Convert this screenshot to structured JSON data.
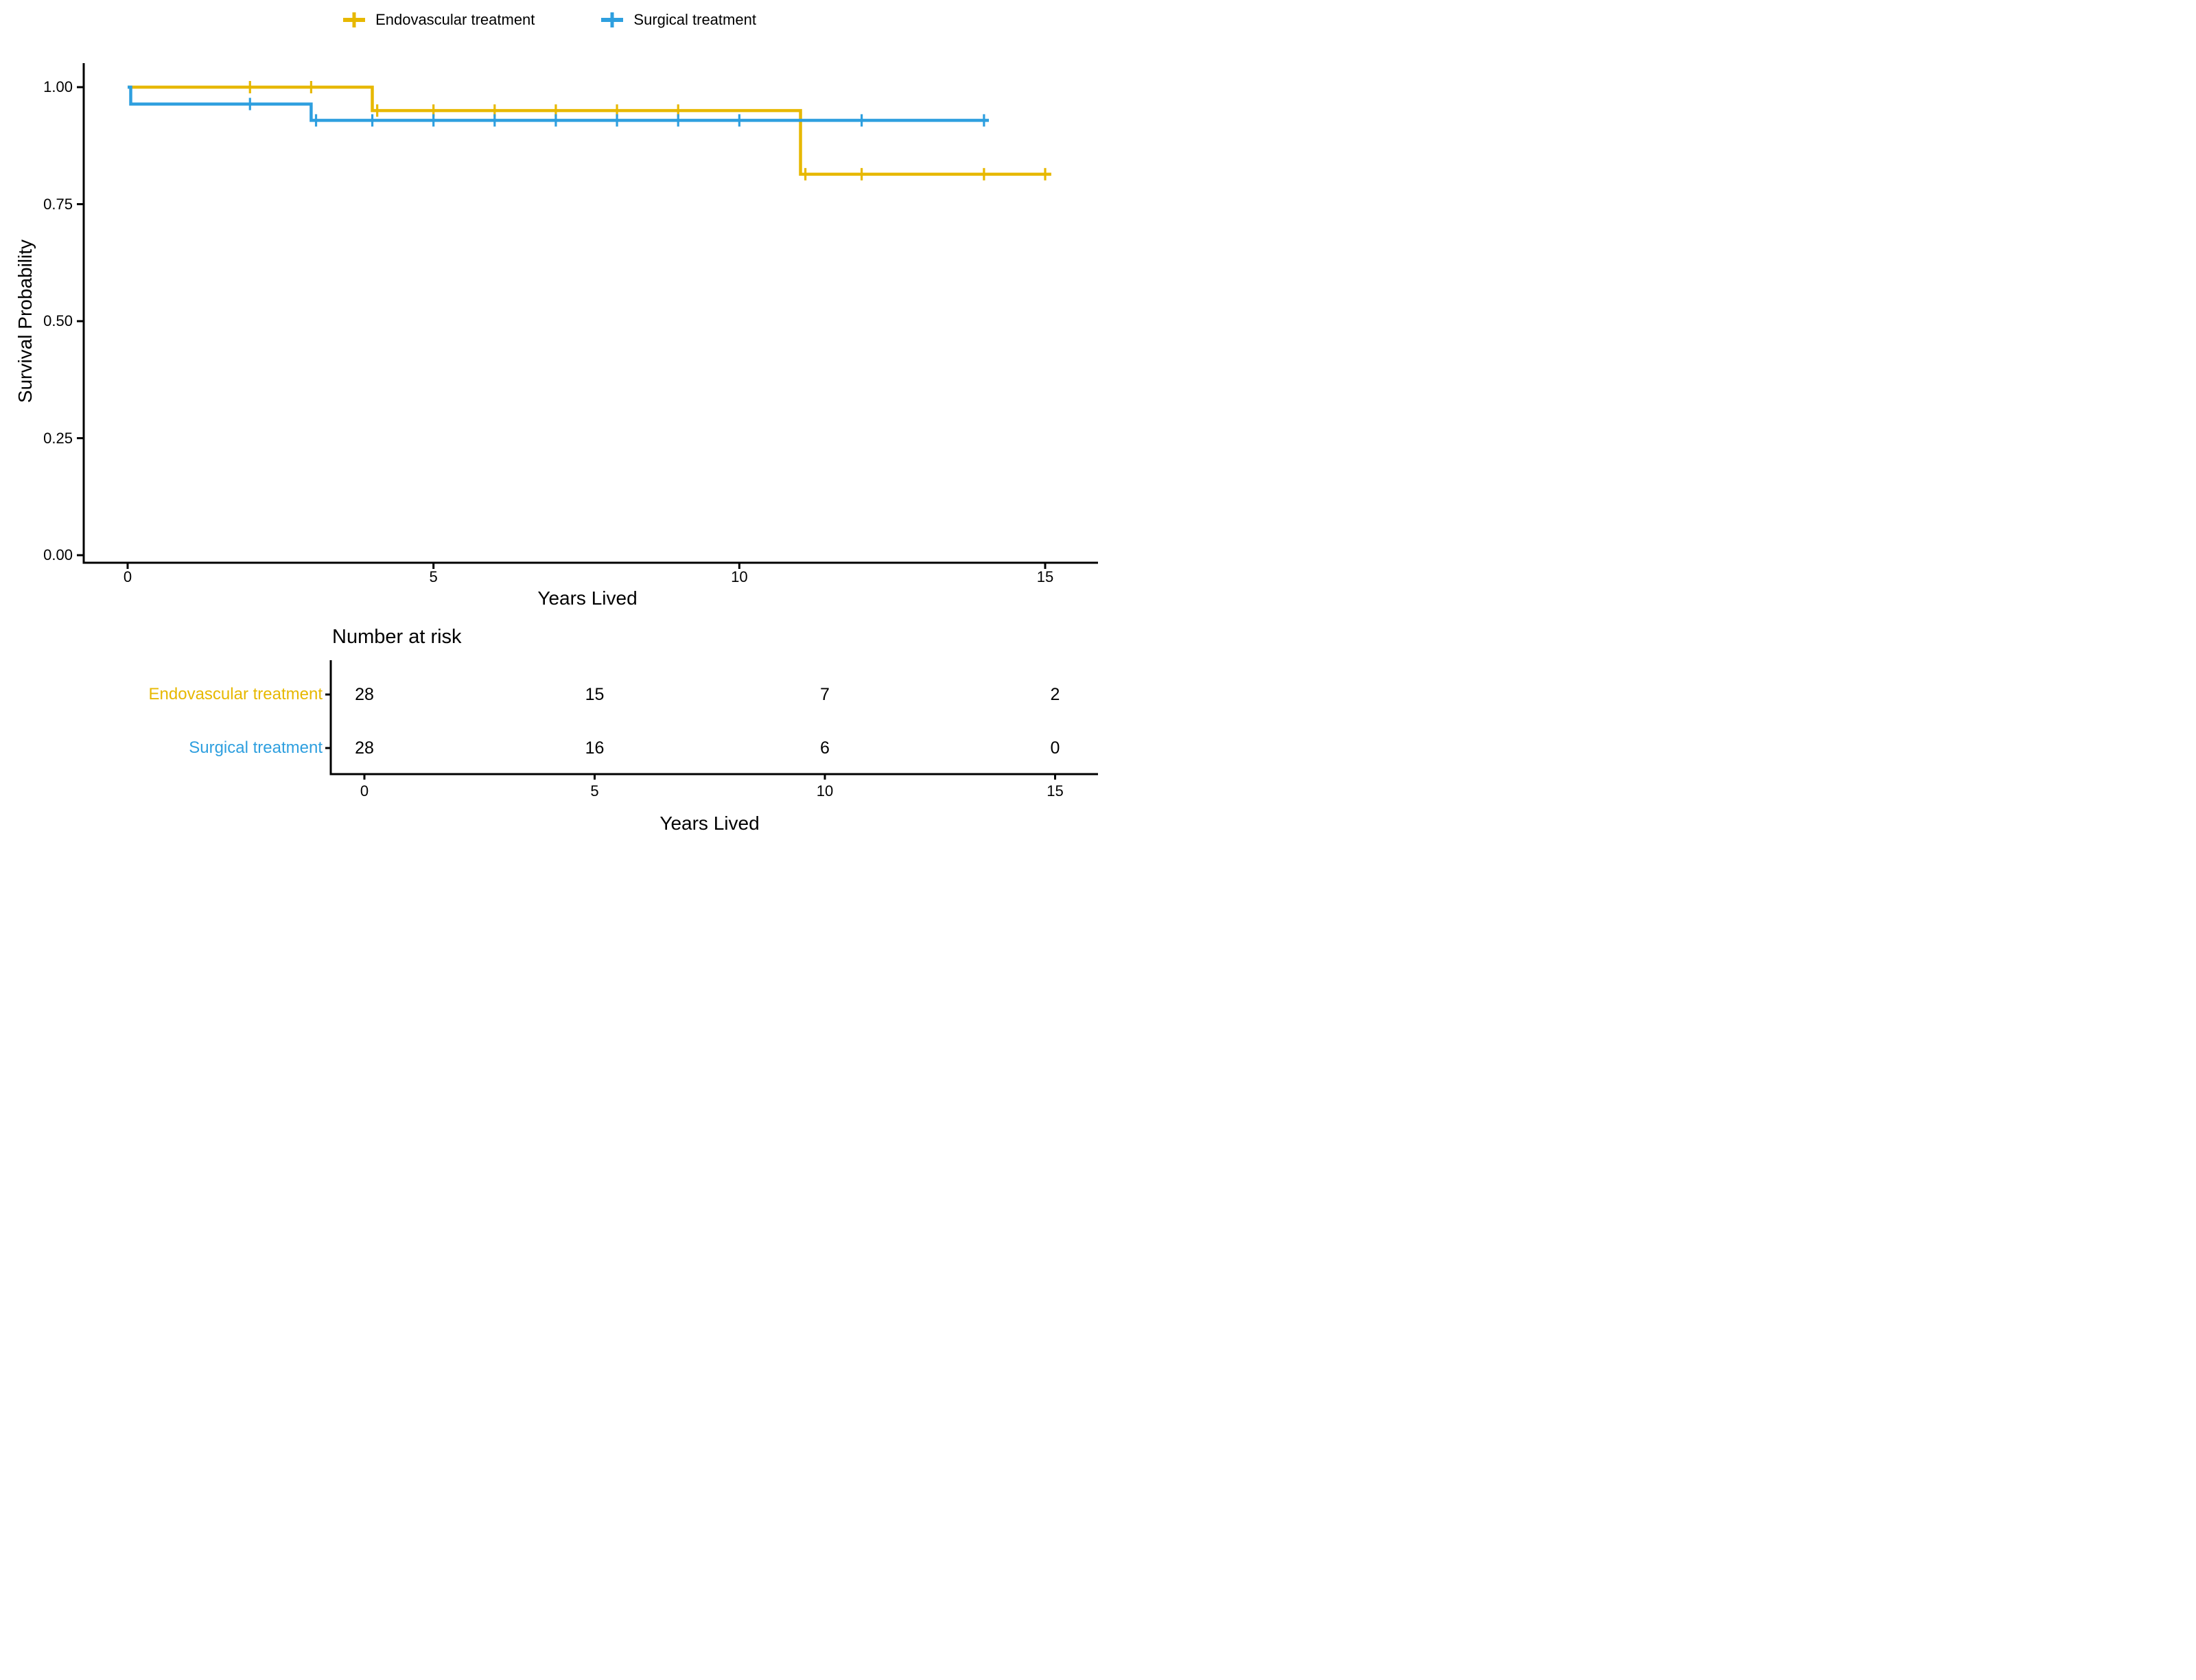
{
  "figure": {
    "background": "#ffffff",
    "text_color": "#000000"
  },
  "legend": {
    "items": [
      {
        "label": "Endovascular treatment",
        "color": "#E7B800",
        "marker": "plus"
      },
      {
        "label": "Surgical treatment",
        "color": "#2E9FDF",
        "marker": "plus"
      }
    ]
  },
  "chart_data": {
    "type": "line",
    "subtype": "kaplan-meier-step",
    "title": "",
    "xlabel": "Years Lived",
    "ylabel": "Survival Probability",
    "xlim": [
      0,
      15.3
    ],
    "ylim": [
      0,
      1.05
    ],
    "grid": false,
    "legend_position": "top-center",
    "xticks": [
      [
        0,
        "0"
      ],
      [
        5,
        "5"
      ],
      [
        10,
        "10"
      ],
      [
        15,
        "15"
      ]
    ],
    "yticks": [
      [
        1.0,
        "1.00"
      ],
      [
        0.75,
        "0.75"
      ],
      [
        0.5,
        "0.50"
      ],
      [
        0.25,
        "0.25"
      ],
      [
        0.0,
        "0.00"
      ]
    ],
    "series": [
      {
        "name": "Endovascular treatment",
        "color": "#E7B800",
        "steps": [
          [
            0,
            1.0
          ],
          [
            4,
            1.0
          ],
          [
            4,
            0.95
          ],
          [
            11,
            0.95
          ],
          [
            11,
            0.814
          ],
          [
            15.1,
            0.814
          ]
        ],
        "censors": [
          [
            2,
            1.0
          ],
          [
            3,
            1.0
          ],
          [
            4.08,
            0.95
          ],
          [
            5,
            0.95
          ],
          [
            6,
            0.95
          ],
          [
            7,
            0.95
          ],
          [
            8,
            0.95
          ],
          [
            9,
            0.95
          ],
          [
            11.08,
            0.814
          ],
          [
            12,
            0.814
          ],
          [
            14,
            0.814
          ],
          [
            15,
            0.814
          ]
        ]
      },
      {
        "name": "Surgical treatment",
        "color": "#2E9FDF",
        "steps": [
          [
            0,
            1.0
          ],
          [
            0.05,
            1.0
          ],
          [
            0.05,
            0.964
          ],
          [
            3,
            0.964
          ],
          [
            3,
            0.929
          ],
          [
            14.08,
            0.929
          ]
        ],
        "censors": [
          [
            2,
            0.964
          ],
          [
            3.08,
            0.929
          ],
          [
            4,
            0.929
          ],
          [
            5,
            0.929
          ],
          [
            6,
            0.929
          ],
          [
            7,
            0.929
          ],
          [
            8,
            0.929
          ],
          [
            9,
            0.929
          ],
          [
            10,
            0.929
          ],
          [
            12,
            0.929
          ],
          [
            14,
            0.929
          ]
        ]
      }
    ]
  },
  "risk_table": {
    "title": "Number at risk",
    "xlabel": "Years Lived",
    "xticks": [
      [
        0,
        "0"
      ],
      [
        5,
        "5"
      ],
      [
        10,
        "10"
      ],
      [
        15,
        "15"
      ]
    ],
    "rows": [
      {
        "label": "Endovascular treatment",
        "color": "#E7B800",
        "values": [
          "28",
          "15",
          "7",
          "2"
        ]
      },
      {
        "label": "Surgical treatment",
        "color": "#2E9FDF",
        "values": [
          "28",
          "16",
          "6",
          "0"
        ]
      }
    ]
  }
}
